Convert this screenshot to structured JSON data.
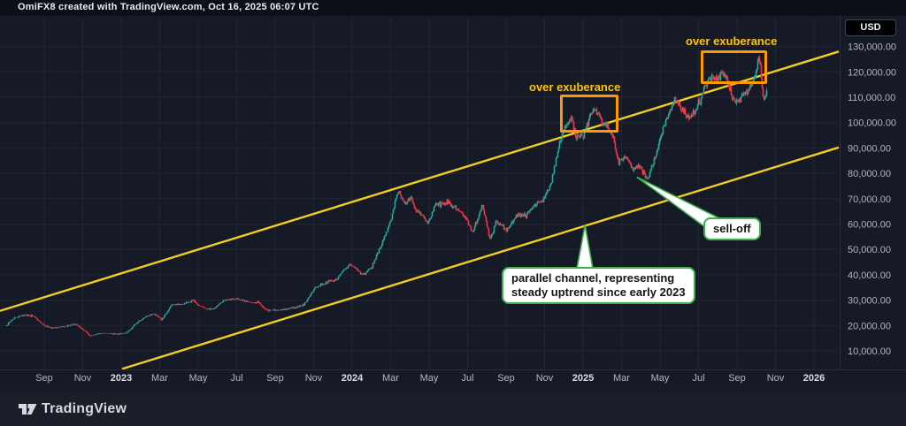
{
  "topbar": {
    "attribution": "OmiFX8 created with TradingView.com, Oct 16, 2025 06:07 UTC"
  },
  "price_axis": {
    "currency_label": "USD",
    "tick_labels": [
      "130,000.00",
      "120,000.00",
      "110,000.00",
      "100,000.00",
      "90,000.00",
      "80,000.00",
      "70,000.00",
      "60,000.00",
      "50,000.00",
      "40,000.00",
      "30,000.00",
      "20,000.00",
      "10,000.00"
    ]
  },
  "time_axis": {
    "ticks": [
      {
        "label": "Sep",
        "m": 2,
        "year": false
      },
      {
        "label": "Nov",
        "m": 4,
        "year": false
      },
      {
        "label": "2023",
        "m": 6,
        "year": true
      },
      {
        "label": "Mar",
        "m": 8,
        "year": false
      },
      {
        "label": "May",
        "m": 10,
        "year": false
      },
      {
        "label": "Jul",
        "m": 12,
        "year": false
      },
      {
        "label": "Sep",
        "m": 14,
        "year": false
      },
      {
        "label": "Nov",
        "m": 16,
        "year": false
      },
      {
        "label": "2024",
        "m": 18,
        "year": true
      },
      {
        "label": "Mar",
        "m": 20,
        "year": false
      },
      {
        "label": "May",
        "m": 22,
        "year": false
      },
      {
        "label": "Jul",
        "m": 24,
        "year": false
      },
      {
        "label": "Sep",
        "m": 26,
        "year": false
      },
      {
        "label": "Nov",
        "m": 28,
        "year": false
      },
      {
        "label": "2025",
        "m": 30,
        "year": true
      },
      {
        "label": "Mar",
        "m": 32,
        "year": false
      },
      {
        "label": "May",
        "m": 34,
        "year": false
      },
      {
        "label": "Jul",
        "m": 36,
        "year": false
      },
      {
        "label": "Sep",
        "m": 38,
        "year": false
      },
      {
        "label": "Nov",
        "m": 40,
        "year": false
      },
      {
        "label": "2026",
        "m": 42,
        "year": true
      }
    ]
  },
  "annotations": {
    "over_exuberance_1": {
      "text": "over exuberance"
    },
    "over_exuberance_2": {
      "text": "over exuberance"
    },
    "sell_off": {
      "text": "sell-off"
    },
    "parallel_channel": {
      "line1": "parallel channel, representing",
      "line2": "steady uptrend since early 2023"
    }
  },
  "footer": {
    "brand": "TradingView"
  },
  "colors": {
    "background": "#161a26",
    "grid": "#212636",
    "axis_text": "#b2b5be",
    "axis_year_text": "#dcdee3",
    "axis_border": "#2a2e39",
    "candle_up": "#2aa79a",
    "candle_down": "#f23645",
    "channel": "#f2cf1d",
    "box_orange": "#ff9800",
    "annotation_yellow": "#fdc40a",
    "callout_border": "#3fae4f",
    "callout_bg": "#ffffff"
  },
  "chart_data": {
    "type": "candlestick",
    "title": "BTC price in USD, daily candles, Aug 2022 - Oct 2025",
    "ylabel": "USD",
    "y_ticks": [
      10000,
      20000,
      30000,
      40000,
      50000,
      60000,
      70000,
      80000,
      90000,
      100000,
      110000,
      120000,
      130000
    ],
    "ylim": [
      3000,
      141000
    ],
    "x_unit": "months_since_2022_07",
    "last_m": 39.5,
    "anchors_note": "price path anchors [month_index, USD]; month_index 0 = Jul 2022, candles interpolated between anchors",
    "anchors": [
      [
        0,
        19800
      ],
      [
        0.4,
        23000
      ],
      [
        1.0,
        24200
      ],
      [
        1.4,
        23800
      ],
      [
        2.0,
        20000
      ],
      [
        2.4,
        18900
      ],
      [
        3.0,
        19500
      ],
      [
        3.6,
        20600
      ],
      [
        4.1,
        17800
      ],
      [
        4.35,
        15900
      ],
      [
        5.0,
        17100
      ],
      [
        5.7,
        16600
      ],
      [
        6.2,
        16800
      ],
      [
        6.8,
        21000
      ],
      [
        7.2,
        23200
      ],
      [
        7.7,
        24600
      ],
      [
        8.1,
        22300
      ],
      [
        8.6,
        28200
      ],
      [
        9.2,
        28300
      ],
      [
        9.7,
        29900
      ],
      [
        10.2,
        27000
      ],
      [
        10.8,
        26500
      ],
      [
        11.4,
        30500
      ],
      [
        12.0,
        30400
      ],
      [
        12.5,
        29300
      ],
      [
        13.1,
        29200
      ],
      [
        13.5,
        26000
      ],
      [
        14.1,
        25900
      ],
      [
        14.6,
        26500
      ],
      [
        15.1,
        27200
      ],
      [
        15.5,
        28500
      ],
      [
        16.0,
        34500
      ],
      [
        16.5,
        36700
      ],
      [
        17.1,
        37800
      ],
      [
        17.8,
        43800
      ],
      [
        18.2,
        42500
      ],
      [
        18.5,
        39800
      ],
      [
        19.0,
        43100
      ],
      [
        19.5,
        51500
      ],
      [
        20.0,
        62000
      ],
      [
        20.37,
        73000
      ],
      [
        20.7,
        68000
      ],
      [
        21.0,
        70500
      ],
      [
        21.4,
        64500
      ],
      [
        21.9,
        60300
      ],
      [
        22.3,
        67200
      ],
      [
        22.9,
        68800
      ],
      [
        23.4,
        66000
      ],
      [
        23.9,
        62500
      ],
      [
        24.25,
        56800
      ],
      [
        24.75,
        67500
      ],
      [
        25.15,
        53800
      ],
      [
        25.45,
        61000
      ],
      [
        26.0,
        57800
      ],
      [
        26.5,
        63300
      ],
      [
        27.0,
        63500
      ],
      [
        27.5,
        67200
      ],
      [
        27.9,
        69800
      ],
      [
        28.3,
        75500
      ],
      [
        28.75,
        92000
      ],
      [
        29.05,
        97500
      ],
      [
        29.4,
        101500
      ],
      [
        29.6,
        95000
      ],
      [
        30.0,
        94300
      ],
      [
        30.35,
        103000
      ],
      [
        30.65,
        104800
      ],
      [
        31.0,
        100300
      ],
      [
        31.45,
        96200
      ],
      [
        31.85,
        84300
      ],
      [
        32.1,
        86800
      ],
      [
        32.55,
        82300
      ],
      [
        33.0,
        82600
      ],
      [
        33.3,
        76300
      ],
      [
        33.7,
        85200
      ],
      [
        34.05,
        95500
      ],
      [
        34.45,
        104000
      ],
      [
        34.75,
        108800
      ],
      [
        35.1,
        105400
      ],
      [
        35.5,
        101400
      ],
      [
        36.0,
        107600
      ],
      [
        36.5,
        118200
      ],
      [
        36.95,
        116200
      ],
      [
        37.3,
        119600
      ],
      [
        37.75,
        109300
      ],
      [
        38.05,
        108800
      ],
      [
        38.45,
        112600
      ],
      [
        38.85,
        116500
      ],
      [
        39.1,
        124000
      ],
      [
        39.22,
        120500
      ],
      [
        39.35,
        107800
      ],
      [
        39.5,
        111500
      ]
    ],
    "channel": {
      "description": "parallel channel, steady uptrend since early 2023",
      "slope_usd_per_month": 2345,
      "upper_price_at_m0": 26500,
      "lower_price_at_m0": -11300
    },
    "boxes": [
      {
        "label": "over exuberance",
        "m_start": 28.8,
        "m_end": 31.8,
        "price_low": 96400,
        "price_high": 111000
      },
      {
        "label": "over exuberance",
        "m_start": 36.1,
        "m_end": 39.55,
        "price_low": 115500,
        "price_high": 128500
      }
    ],
    "callouts": [
      {
        "label": "sell-off",
        "anchor_m": 32.8,
        "anchor_price": 78500
      },
      {
        "label": "parallel channel, representing steady uptrend since early 2023",
        "anchor_m": 30.1,
        "anchor_price": 59500
      }
    ]
  }
}
